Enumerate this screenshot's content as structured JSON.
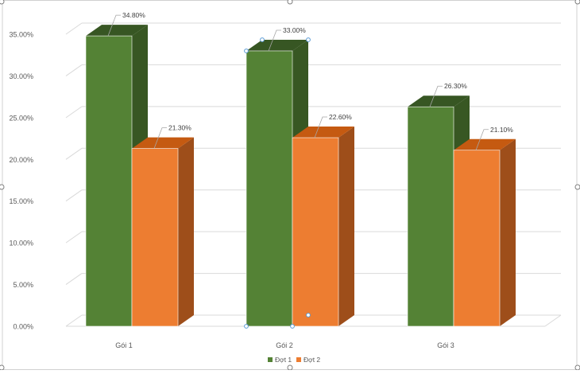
{
  "chart_data": {
    "type": "bar",
    "style": "3d-clustered-column",
    "categories": [
      "Gói 1",
      "Gói 2",
      "Gói 3"
    ],
    "series": [
      {
        "name": "Đợt 1",
        "values": [
          34.8,
          33.0,
          26.3
        ],
        "labels": [
          "34.80%",
          "33.00%",
          "26.30%"
        ],
        "color": "#548235",
        "side_color": "#385723",
        "top_color": "#375623"
      },
      {
        "name": "Đợt 2",
        "values": [
          21.3,
          22.6,
          21.1
        ],
        "labels": [
          "21.30%",
          "22.60%",
          "21.10%"
        ],
        "color": "#ED7D31",
        "side_color": "#9E4E1A",
        "top_color": "#C55A11"
      }
    ],
    "ylim": [
      0,
      35
    ],
    "yticks": [
      "0.00%",
      "5.00%",
      "10.00%",
      "15.00%",
      "20.00%",
      "25.00%",
      "30.00%",
      "35.00%"
    ],
    "title": "",
    "xlabel": "",
    "ylabel": "",
    "grid": true,
    "legend_position": "bottom",
    "selected_series": "Đợt 1",
    "selected_point": "Gói 2"
  }
}
